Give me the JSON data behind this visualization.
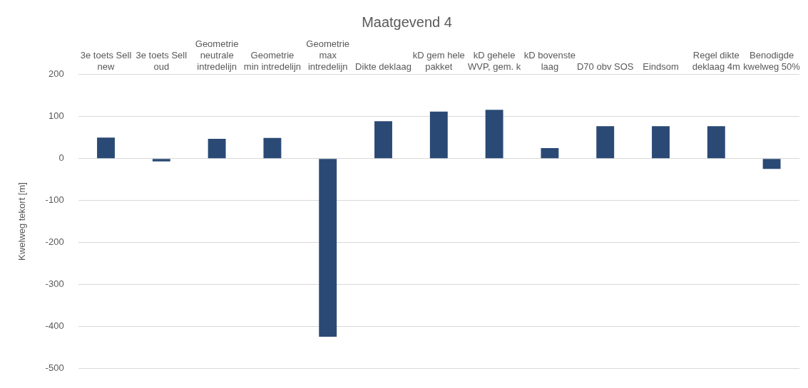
{
  "chart_data": {
    "type": "bar",
    "title": "Maatgevend 4",
    "ylabel": "Kwelweg tekort [m]",
    "categories": [
      "3e toets Sell new",
      "3e toets Sell oud",
      "Geometrie neutrale intredelijn",
      "Geometrie min intredelijn",
      "Geometrie max intredelijn",
      "Dikte deklaag",
      "kD gem hele pakket",
      "kD gehele WVP, gem. k",
      "kD bovenste laag",
      "D70 obv SOS",
      "Eindsom",
      "Regel dikte deklaag 4m",
      "Benodigde kwelweg 50%"
    ],
    "values": [
      50,
      -7,
      47,
      49,
      -425,
      89,
      112,
      116,
      25,
      77,
      77,
      77,
      -25
    ],
    "color": "#2a4a75",
    "ylim": [
      -500,
      200
    ],
    "yticks": [
      -500,
      -400,
      -300,
      -200,
      -100,
      0,
      100,
      200
    ],
    "grid": "y",
    "legend": false
  }
}
